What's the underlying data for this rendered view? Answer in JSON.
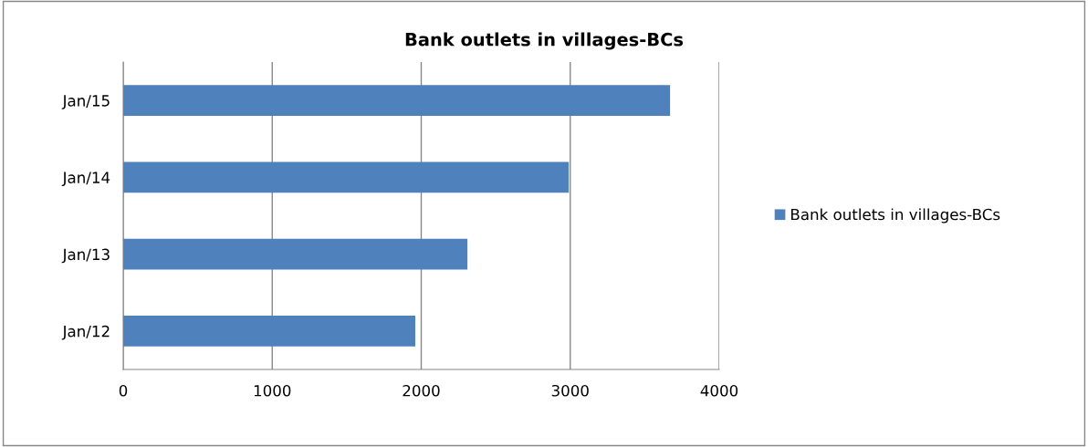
{
  "chart_data": {
    "type": "bar",
    "orientation": "horizontal",
    "title": "Bank outlets in villages-BCs",
    "categories": [
      "Jan/15",
      "Jan/14",
      "Jan/13",
      "Jan/12"
    ],
    "series": [
      {
        "name": "Bank outlets in villages-BCs",
        "color": "#4f81bd",
        "values": [
          3670,
          2990,
          2310,
          1960
        ]
      }
    ],
    "xlim": [
      0,
      4000
    ],
    "xticks": [
      0,
      1000,
      2000,
      3000,
      4000
    ],
    "grid": "x",
    "legend": "right"
  }
}
